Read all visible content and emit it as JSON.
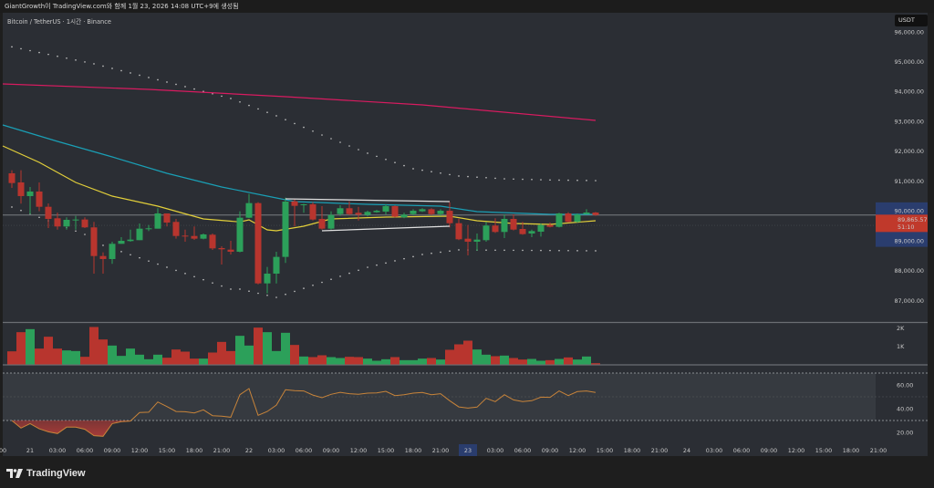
{
  "header": {
    "caption": "GiantGrowth이 TradingView.com와 함께 1월 23, 2026 14:08 UTC+9에 생성됨"
  },
  "chart": {
    "symbol_line": "Bitcoin / TetherUS · 1시간 · Binance",
    "currency_button": "USDT",
    "current_price_label": "89,865.57",
    "countdown_label": "51:10",
    "current_price": 89865.57
  },
  "colors": {
    "background": "#2b2e34",
    "up": "#2ca05a",
    "down": "#b8352e",
    "ma_magenta": "#d81b60",
    "ma_cyan": "#1a9fb5",
    "ma_yellow": "#e2cf3a",
    "rsi_line": "#c8843a",
    "price_label": "#c0392b",
    "axis_highlight": "#2a3d6e"
  },
  "price_axis": {
    "labels": [
      "96,000.00",
      "95,000.00",
      "94,000.00",
      "93,000.00",
      "92,000.00",
      "91,000.00",
      "90,000.00",
      "89,000.00",
      "88,000.00",
      "87,000.00"
    ],
    "values": [
      96000,
      95000,
      94000,
      93000,
      92000,
      91000,
      90000,
      89000,
      88000,
      87000
    ]
  },
  "volume_axis": {
    "labels": [
      "2K",
      "1K"
    ],
    "values": [
      2000,
      1000
    ]
  },
  "rsi_axis": {
    "labels": [
      "60.00",
      "40.00",
      "20.00"
    ],
    "values": [
      60,
      40,
      20
    ],
    "bands": [
      70,
      50,
      30
    ]
  },
  "time_axis": {
    "labels": [
      "00",
      "21",
      "03:00",
      "06:00",
      "09:00",
      "12:00",
      "15:00",
      "18:00",
      "21:00",
      "22",
      "03:00",
      "06:00",
      "09:00",
      "12:00",
      "15:00",
      "18:00",
      "21:00",
      "23",
      "03:00",
      "06:00",
      "09:00",
      "12:00",
      "15:00",
      "18:00",
      "21:00",
      "24",
      "03:00",
      "06:00",
      "09:00",
      "12:00",
      "15:00",
      "18:00",
      "21:00"
    ],
    "highlighted": "23"
  },
  "chart_data": {
    "type": "candlestick",
    "interval": "1h",
    "ohlc": [
      [
        91264,
        91366,
        90775,
        90937
      ],
      [
        90958,
        91366,
        90246,
        90500
      ],
      [
        90500,
        90805,
        89889,
        90653
      ],
      [
        90653,
        90958,
        89990,
        90142
      ],
      [
        90142,
        90255,
        89430,
        89736
      ],
      [
        89757,
        89944,
        89378,
        89482
      ],
      [
        89482,
        89788,
        89378,
        89705
      ],
      [
        89705,
        89837,
        89378,
        89715
      ],
      [
        89716,
        89788,
        89430,
        89452
      ],
      [
        89452,
        89635,
        87902,
        88492
      ],
      [
        88492,
        88615,
        87902,
        88391
      ],
      [
        88391,
        88972,
        88229,
        88901
      ],
      [
        88901,
        89124,
        88901,
        89002
      ],
      [
        88993,
        89378,
        88970,
        89042
      ],
      [
        89023,
        89583,
        89023,
        89409
      ],
      [
        89409,
        89532,
        89328,
        89420
      ],
      [
        89409,
        90093,
        89409,
        89919
      ],
      [
        89919,
        89919,
        89482,
        89613
      ],
      [
        89635,
        89736,
        89073,
        89164
      ],
      [
        89176,
        89378,
        88972,
        89166
      ],
      [
        89164,
        89482,
        89032,
        89073
      ],
      [
        89073,
        89247,
        89053,
        89216
      ],
      [
        89206,
        89247,
        88697,
        88748
      ],
      [
        88758,
        88819,
        88208,
        88717
      ],
      [
        88706,
        89002,
        88544,
        88636
      ],
      [
        88636,
        89990,
        88615,
        89776
      ],
      [
        89776,
        90570,
        89766,
        90265
      ],
      [
        90265,
        90295,
        87544,
        87575
      ],
      [
        87575,
        88126,
        87239,
        87902
      ],
      [
        87902,
        88636,
        87575,
        88463
      ],
      [
        88463,
        90448,
        88259,
        90316
      ],
      [
        90326,
        90387,
        89482,
        90173
      ],
      [
        90194,
        90245,
        89940,
        90225
      ],
      [
        90225,
        90295,
        89680,
        89715
      ],
      [
        89736,
        90163,
        89378,
        89409
      ],
      [
        89409,
        89990,
        89378,
        89868
      ],
      [
        89898,
        90194,
        89838,
        90093
      ],
      [
        90093,
        90326,
        89860,
        89898
      ],
      [
        89940,
        90142,
        89680,
        89880
      ],
      [
        89868,
        90010,
        89818,
        89970
      ],
      [
        89960,
        90040,
        89940,
        90010
      ],
      [
        89980,
        90225,
        89889,
        90163
      ],
      [
        90163,
        90194,
        89788,
        89807
      ],
      [
        89788,
        89940,
        89757,
        89880
      ],
      [
        89898,
        90060,
        89860,
        90010
      ],
      [
        89990,
        90093,
        89970,
        90060
      ],
      [
        90060,
        90093,
        89860,
        89898
      ],
      [
        89898,
        90060,
        89838,
        90010
      ],
      [
        90010,
        90295,
        89452,
        89592
      ],
      [
        89592,
        89736,
        89023,
        89053
      ],
      [
        89073,
        89532,
        88513,
        88972
      ],
      [
        88972,
        89247,
        88667,
        89042
      ],
      [
        89023,
        89635,
        88972,
        89513
      ],
      [
        89513,
        89757,
        89267,
        89298
      ],
      [
        89298,
        89889,
        89093,
        89736
      ],
      [
        89736,
        89889,
        89348,
        89378
      ],
      [
        89399,
        89635,
        89206,
        89226
      ],
      [
        89247,
        89378,
        89124,
        89328
      ],
      [
        89308,
        89583,
        89144,
        89532
      ],
      [
        89532,
        89613,
        89450,
        89470
      ],
      [
        89470,
        89940,
        89450,
        89919
      ],
      [
        89919,
        89960,
        89613,
        89635
      ],
      [
        89635,
        89919,
        89613,
        89880
      ],
      [
        89898,
        90060,
        89898,
        89950
      ],
      [
        89950,
        89970,
        89838,
        89866
      ]
    ],
    "volume": [
      717,
      1767,
      1933,
      867,
      1517,
      867,
      767,
      733,
      417,
      2050,
      1367,
      1033,
      467,
      867,
      533,
      283,
      533,
      367,
      817,
      700,
      317,
      317,
      650,
      1233,
      733,
      1567,
      1033,
      2017,
      1767,
      733,
      1733,
      1067,
      433,
      400,
      500,
      400,
      350,
      417,
      400,
      317,
      200,
      283,
      400,
      233,
      233,
      317,
      350,
      267,
      800,
      1100,
      1300,
      817,
      533,
      450,
      483,
      350,
      267,
      300,
      200,
      233,
      300,
      383,
      267,
      433,
      67
    ],
    "rsi": [
      30,
      23.6,
      27.4,
      23,
      20.5,
      19,
      24.4,
      24.4,
      22.6,
      17.2,
      16.7,
      27.4,
      29,
      29.5,
      36.7,
      37,
      45.6,
      41.8,
      37.6,
      37.4,
      36.4,
      39,
      34.1,
      33.6,
      32.8,
      51.8,
      56.9,
      34.4,
      37.6,
      43,
      55.9,
      55.2,
      54.9,
      51.5,
      49.2,
      52.1,
      53.8,
      52.6,
      52.1,
      53.1,
      53.3,
      54.6,
      51,
      51.8,
      53.1,
      53.6,
      51.8,
      52.6,
      46.7,
      41.5,
      40.5,
      41.3,
      48.7,
      45.9,
      51.8,
      47.4,
      45.9,
      46.7,
      49.7,
      49.5,
      54.9,
      51,
      54.4,
      54.9,
      53.6
    ],
    "moving_averages": [
      {
        "color_key": "ma_magenta",
        "points": [
          [
            -1,
            94259
          ],
          [
            15,
            94075
          ],
          [
            30,
            93831
          ],
          [
            45,
            93555
          ],
          [
            64,
            93036
          ]
        ]
      },
      {
        "color_key": "ma_cyan",
        "points": [
          [
            -1,
            92883
          ],
          [
            5,
            92333
          ],
          [
            11,
            91814
          ],
          [
            17,
            91264
          ],
          [
            23,
            90805
          ],
          [
            28,
            90500
          ],
          [
            31,
            90316
          ],
          [
            39,
            90225
          ],
          [
            47,
            90163
          ],
          [
            51,
            89980
          ],
          [
            59,
            89889
          ],
          [
            64,
            89889
          ]
        ]
      },
      {
        "color_key": "ma_yellow",
        "points": [
          [
            -1,
            92180
          ],
          [
            3,
            91631
          ],
          [
            7,
            90958
          ],
          [
            11,
            90500
          ],
          [
            16,
            90163
          ],
          [
            21,
            89736
          ],
          [
            25,
            89635
          ],
          [
            26,
            89705
          ],
          [
            28,
            89369
          ],
          [
            29,
            89338
          ],
          [
            32,
            89491
          ],
          [
            35,
            89736
          ],
          [
            41,
            89797
          ],
          [
            48,
            89828
          ],
          [
            51,
            89674
          ],
          [
            55,
            89583
          ],
          [
            59,
            89552
          ],
          [
            64,
            89674
          ]
        ]
      }
    ],
    "dotted_bands": [
      {
        "segments": [
          [
            [
              0,
              95500
            ],
            [
              9,
              94931
            ],
            [
              19,
              94167
            ],
            [
              24,
              93770
            ],
            [
              29,
              93189
            ],
            [
              34,
              92547
            ],
            [
              39,
              91936
            ],
            [
              44,
              91417
            ],
            [
              49,
              91172
            ],
            [
              54,
              91080
            ],
            [
              59,
              91040
            ],
            [
              64,
              91019
            ]
          ]
        ]
      },
      {
        "segments": [
          [
            [
              0,
              90133
            ],
            [
              8,
              89216
            ]
          ],
          [
            [
              10,
              88850
            ],
            [
              24,
              87383
            ],
            [
              25,
              87383
            ],
            [
              29,
              87107
            ],
            [
              39,
              88116
            ],
            [
              45,
              88544
            ],
            [
              49,
              88697
            ],
            [
              64,
              88667
            ]
          ]
        ]
      }
    ],
    "trendlines": [
      {
        "from": [
          30,
          90408
        ],
        "to": [
          48,
          90316
        ]
      },
      {
        "from": [
          34,
          89338
        ],
        "to": [
          48,
          89491
        ]
      }
    ],
    "price_range": [
      86700,
      96100
    ]
  },
  "footer": {
    "brand": "TradingView"
  }
}
